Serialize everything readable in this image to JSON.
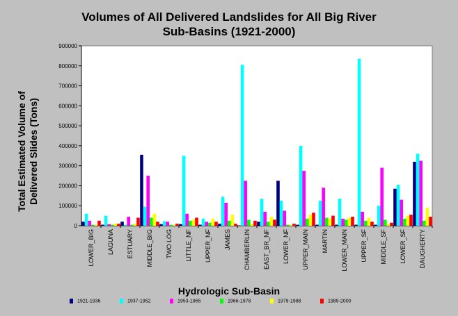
{
  "chart_data": {
    "type": "bar",
    "title": [
      "Volumes of All Delivered Landslides for All Big River",
      "Sub-Basins (1921-2000)"
    ],
    "xlabel": "Hydrologic Sub-Basin",
    "ylabel": [
      "Total Estimated Volume of",
      "Delivered Slides (Tons)"
    ],
    "ylim": [
      0,
      900000
    ],
    "yticks": [
      "0",
      "100000",
      "200000",
      "300000",
      "400000",
      "500000",
      "600000",
      "700000",
      "800000",
      "900000"
    ],
    "grid": false,
    "legend_position": "bottom",
    "categories": [
      "LOWER_BIG",
      "LAGUNA",
      "ESTUARY",
      "MIDDLE_BIG",
      "TWO LOG",
      "LITTLE_NF",
      "UPPER_NF",
      "JAMES",
      "CHAMBERLIN",
      "EAST_BR_NF",
      "LOWER_NF",
      "UPPER_MAIN",
      "MARTIN",
      "LOWER_MAIN",
      "UPPER_SF",
      "MIDDLE_SF",
      "LOWER_SF",
      "DAUGHERTY"
    ],
    "series": [
      {
        "name": "1921-1936",
        "color": "#000080",
        "values": [
          20000,
          5000,
          20000,
          355000,
          8000,
          8000,
          5000,
          10000,
          0,
          20000,
          225000,
          5000,
          5000,
          5000,
          5000,
          5000,
          185000,
          320000
        ]
      },
      {
        "name": "1937-1952",
        "color": "#00ffff",
        "values": [
          60000,
          50000,
          5000,
          95000,
          22000,
          350000,
          35000,
          145000,
          805000,
          135000,
          125000,
          400000,
          125000,
          135000,
          835000,
          100000,
          205000,
          360000
        ]
      },
      {
        "name": "1953-1965",
        "color": "#ff00ff",
        "values": [
          25000,
          8000,
          45000,
          250000,
          20000,
          60000,
          20000,
          115000,
          225000,
          70000,
          75000,
          275000,
          190000,
          35000,
          70000,
          290000,
          130000,
          325000
        ]
      },
      {
        "name": "1966-1978",
        "color": "#00ff00",
        "values": [
          5000,
          5000,
          5000,
          40000,
          5000,
          25000,
          15000,
          25000,
          30000,
          20000,
          5000,
          35000,
          40000,
          30000,
          25000,
          30000,
          35000,
          25000
        ]
      },
      {
        "name": "1979-1988",
        "color": "#ffff00",
        "values": [
          5000,
          10000,
          10000,
          60000,
          5000,
          30000,
          35000,
          55000,
          10000,
          45000,
          5000,
          55000,
          35000,
          40000,
          40000,
          10000,
          50000,
          90000
        ]
      },
      {
        "name": "1989-2000",
        "color": "#ff0000",
        "values": [
          25000,
          10000,
          40000,
          20000,
          10000,
          40000,
          20000,
          10000,
          25000,
          30000,
          10000,
          65000,
          50000,
          45000,
          20000,
          15000,
          55000,
          45000
        ]
      }
    ]
  }
}
